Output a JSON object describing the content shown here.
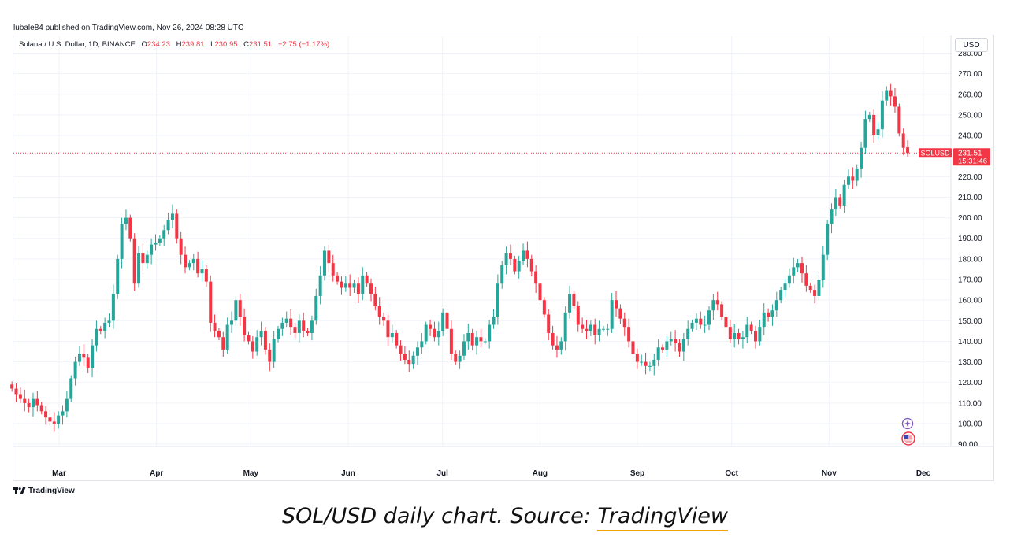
{
  "publisher_line": "lubale84 published on TradingView.com, Nov 26, 2024 08:28 UTC",
  "legend": {
    "symbol": "Solana / U.S. Dollar, 1D, BINANCE",
    "open_key": "O",
    "open": "234.23",
    "high_key": "H",
    "high": "239.81",
    "low_key": "L",
    "low": "230.95",
    "close_key": "C",
    "close": "231.51",
    "change": "−2.75 (−1.17%)"
  },
  "currency_button": "USD",
  "price_tag": {
    "symbol": "SOLUSD",
    "price": "231.51",
    "countdown": "15:31:46"
  },
  "brand": "TradingView",
  "caption": {
    "text": "SOL/USD daily chart. Source: ",
    "source": "TradingView"
  },
  "colors": {
    "up": "#26a69a",
    "down": "#f23645",
    "grid": "#f0f3fa",
    "text": "#131722"
  },
  "chart_data": {
    "type": "candlestick",
    "title": "Solana / U.S. Dollar, 1D, BINANCE",
    "x_tick_labels": [
      "Mar",
      "Apr",
      "May",
      "Jun",
      "Jul",
      "Aug",
      "Sep",
      "Oct",
      "Nov",
      "Dec"
    ],
    "y_tick_labels": [
      "90.00",
      "100.00",
      "110.00",
      "120.00",
      "130.00",
      "140.00",
      "150.00",
      "160.00",
      "170.00",
      "180.00",
      "190.00",
      "200.00",
      "210.00",
      "220.00",
      "240.00",
      "250.00",
      "260.00",
      "270.00",
      "280.00"
    ],
    "ylim": [
      88,
      285
    ],
    "last_price": 231.51,
    "x_start": "2024-02-15",
    "x_end": "2024-11-26",
    "close": [
      117,
      114,
      112,
      110,
      108,
      112,
      109,
      106,
      103,
      101,
      100,
      104,
      106,
      112,
      122,
      130,
      134,
      132,
      127,
      138,
      146,
      145,
      149,
      150,
      163,
      180,
      197,
      200,
      190,
      168,
      183,
      178,
      182,
      187,
      188,
      190,
      194,
      199,
      202,
      190,
      182,
      176,
      178,
      180,
      173,
      175,
      169,
      149,
      145,
      142,
      136,
      148,
      150,
      160,
      152,
      143,
      140,
      135,
      142,
      145,
      136,
      130,
      141,
      146,
      149,
      151,
      147,
      144,
      150,
      145,
      144,
      150,
      162,
      172,
      184,
      178,
      172,
      169,
      166,
      168,
      166,
      168,
      163,
      172,
      168,
      163,
      157,
      152,
      150,
      142,
      144,
      138,
      134,
      131,
      129,
      133,
      137,
      140,
      148,
      146,
      142,
      145,
      154,
      146,
      134,
      130,
      133,
      140,
      144,
      138,
      142,
      140,
      140,
      148,
      152,
      168,
      177,
      183,
      180,
      174,
      179,
      184,
      180,
      174,
      168,
      160,
      153,
      144,
      138,
      136,
      140,
      154,
      163,
      157,
      148,
      146,
      145,
      148,
      143,
      146,
      146,
      146,
      160,
      156,
      151,
      147,
      140,
      134,
      130,
      130,
      128,
      128,
      131,
      137,
      136,
      140,
      141,
      139,
      135,
      141,
      146,
      149,
      151,
      148,
      148,
      155,
      160,
      158,
      152,
      147,
      141,
      144,
      141,
      142,
      148,
      145,
      140,
      147,
      154,
      152,
      155,
      160,
      165,
      168,
      172,
      176,
      178,
      173,
      167,
      165,
      162,
      170,
      182,
      197,
      204,
      210,
      206,
      216,
      220,
      218,
      224,
      234,
      248,
      250,
      240,
      243,
      257,
      262,
      259,
      254,
      241,
      234,
      231.51
    ],
    "open": [
      119,
      117,
      114,
      112,
      110,
      108,
      112,
      109,
      106,
      103,
      101,
      100,
      104,
      106,
      112,
      122,
      130,
      134,
      132,
      127,
      138,
      146,
      145,
      149,
      150,
      163,
      180,
      197,
      200,
      190,
      168,
      183,
      178,
      182,
      187,
      188,
      190,
      194,
      199,
      202,
      190,
      182,
      176,
      178,
      180,
      173,
      175,
      169,
      149,
      145,
      142,
      136,
      148,
      150,
      160,
      152,
      143,
      140,
      135,
      142,
      145,
      136,
      130,
      141,
      146,
      149,
      151,
      147,
      144,
      150,
      145,
      144,
      150,
      162,
      172,
      184,
      178,
      172,
      169,
      166,
      168,
      166,
      168,
      163,
      172,
      168,
      163,
      157,
      152,
      150,
      142,
      144,
      138,
      134,
      131,
      129,
      133,
      137,
      140,
      148,
      146,
      142,
      145,
      154,
      146,
      134,
      130,
      133,
      140,
      144,
      138,
      142,
      140,
      140,
      148,
      152,
      168,
      177,
      183,
      180,
      174,
      179,
      184,
      180,
      174,
      168,
      160,
      153,
      144,
      138,
      136,
      140,
      154,
      163,
      157,
      148,
      146,
      145,
      148,
      143,
      146,
      146,
      146,
      160,
      156,
      151,
      147,
      140,
      134,
      130,
      130,
      128,
      128,
      131,
      137,
      136,
      140,
      141,
      139,
      135,
      141,
      146,
      149,
      151,
      148,
      148,
      155,
      160,
      158,
      152,
      147,
      141,
      144,
      141,
      142,
      148,
      145,
      140,
      147,
      154,
      152,
      155,
      160,
      165,
      168,
      172,
      176,
      178,
      173,
      167,
      165,
      162,
      170,
      182,
      197,
      204,
      210,
      206,
      216,
      220,
      218,
      224,
      234,
      248,
      250,
      240,
      243,
      257,
      262,
      259,
      254,
      241,
      234.23
    ]
  }
}
